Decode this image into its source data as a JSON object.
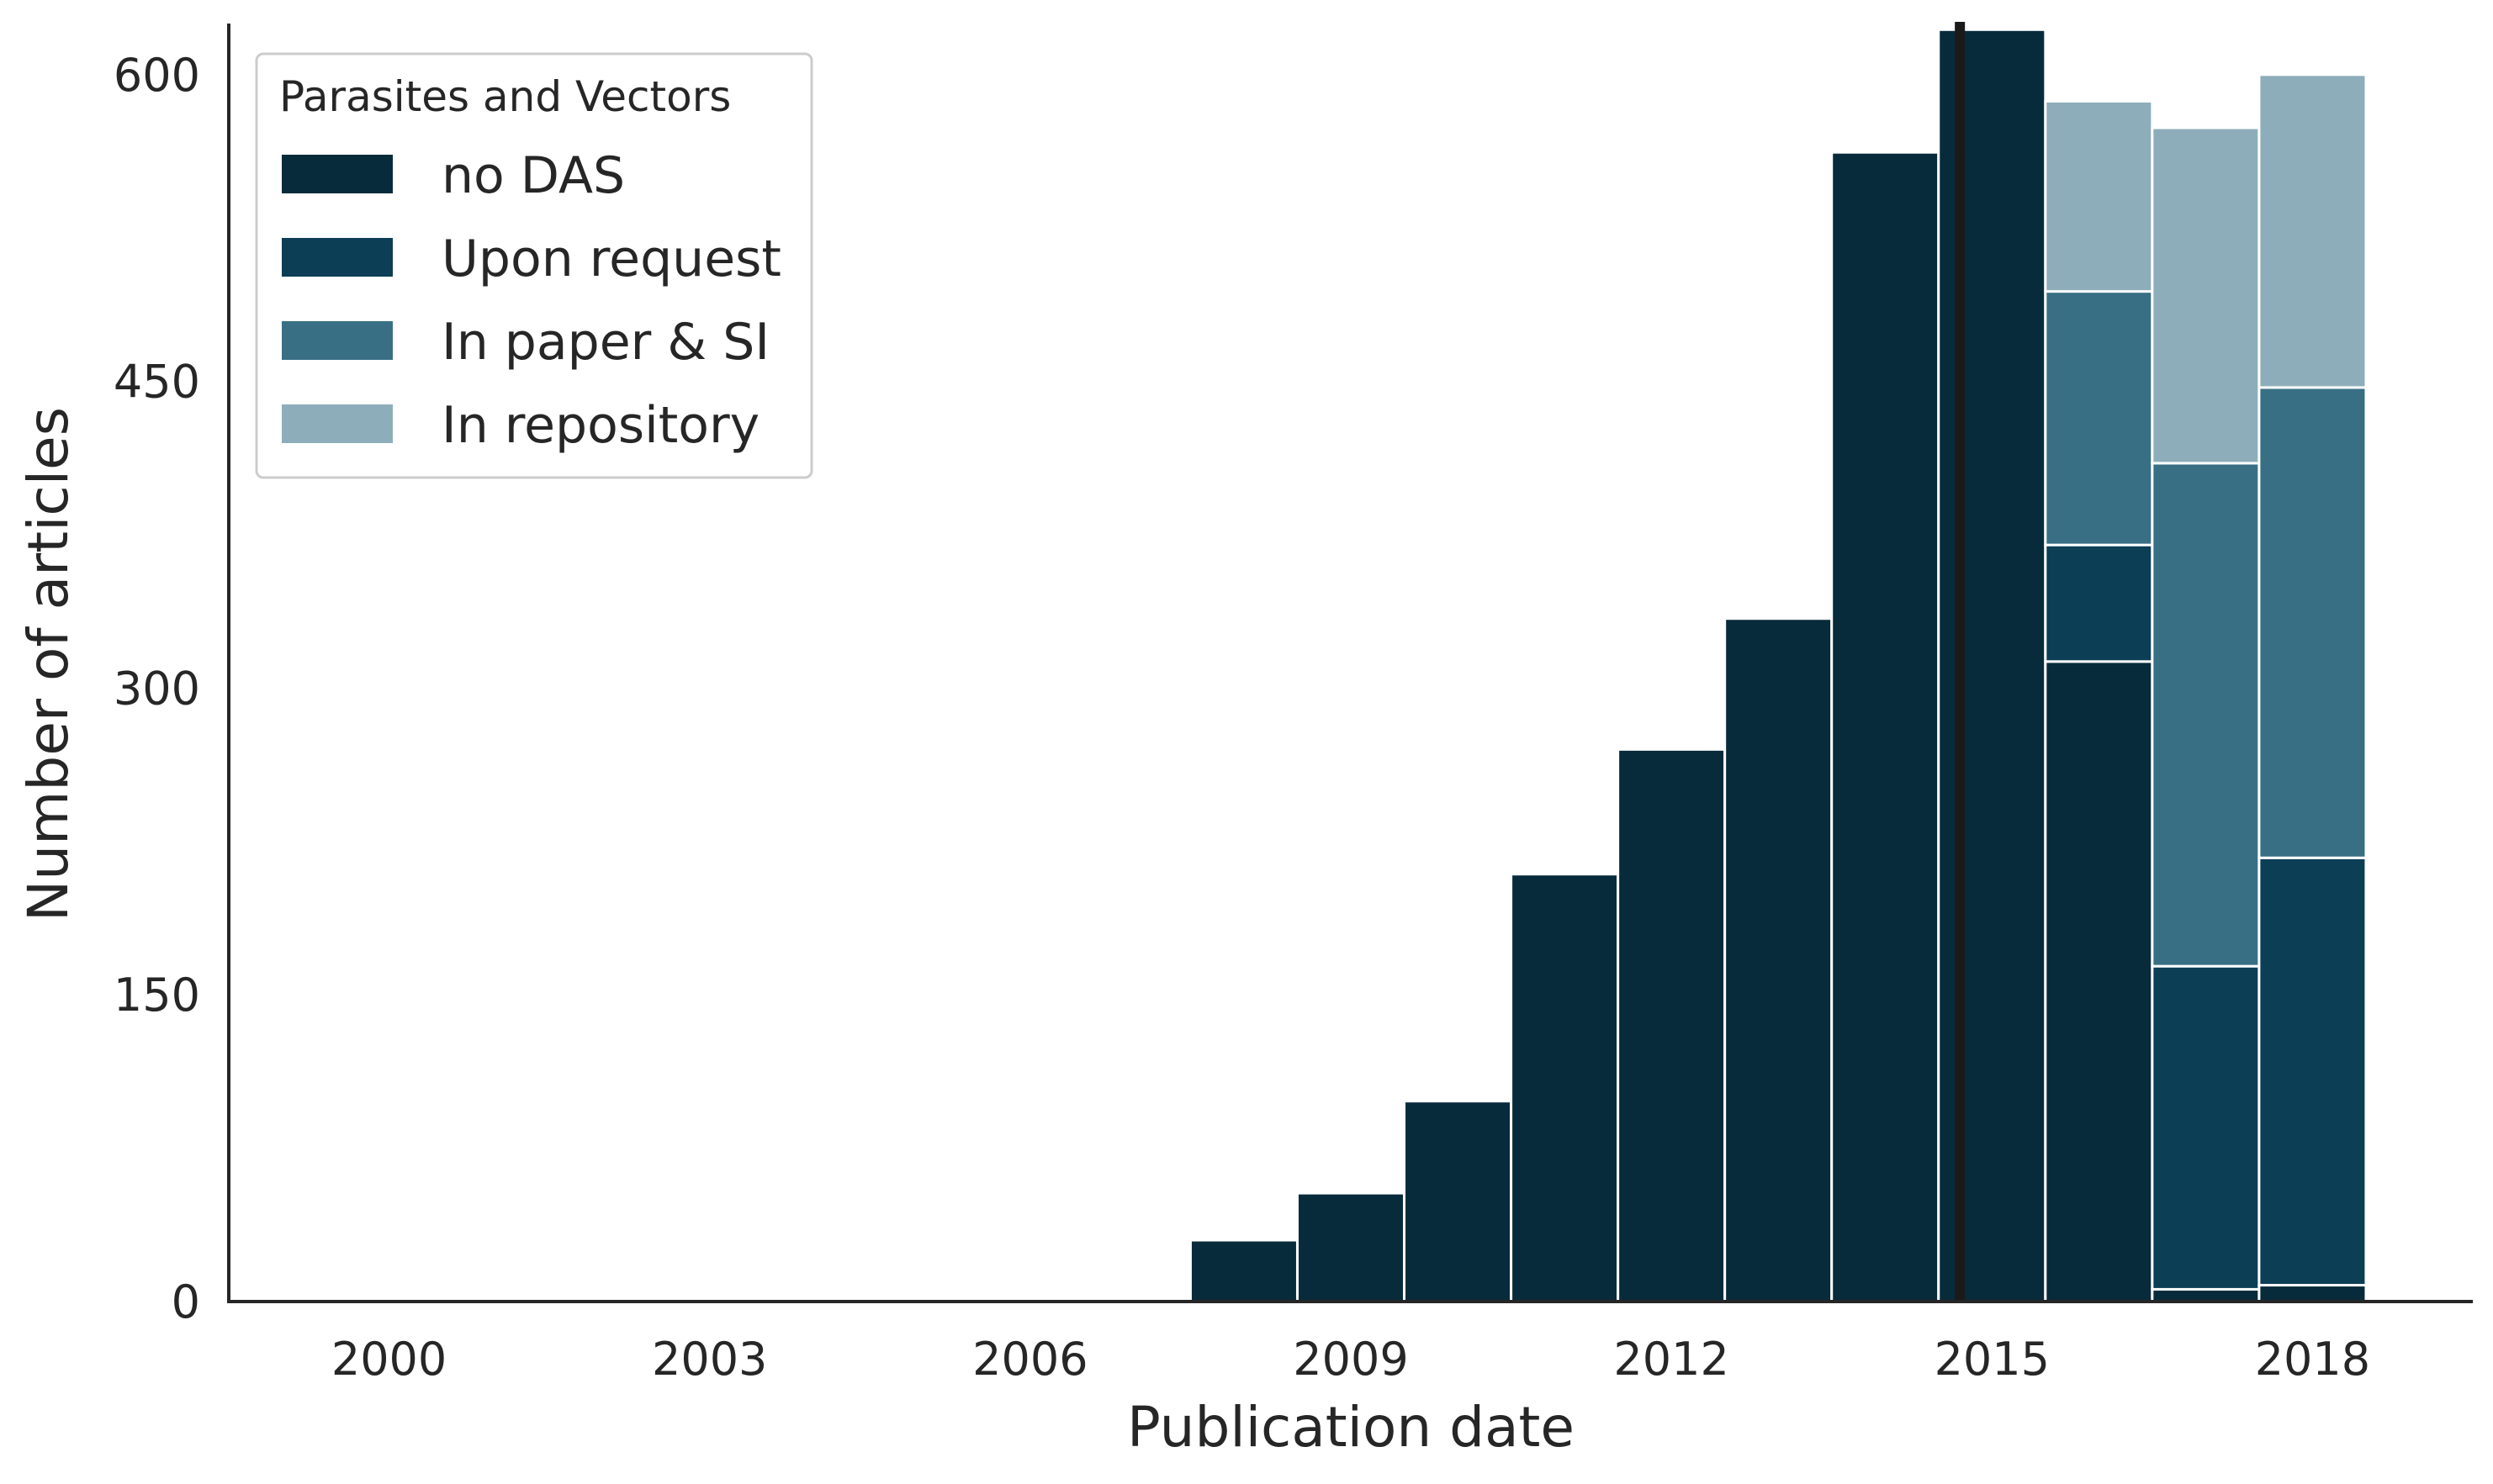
{
  "chart_data": {
    "type": "bar",
    "stacked": true,
    "title": "",
    "xlabel": "Publication date",
    "ylabel": "Number of articles",
    "x": [
      2008,
      2009,
      2010,
      2011,
      2012,
      2013,
      2014,
      2015,
      2016,
      2017,
      2018
    ],
    "xlim": [
      1998.5,
      2019.5
    ],
    "ylim": [
      0,
      625
    ],
    "xticks": [
      2000,
      2003,
      2006,
      2009,
      2012,
      2015,
      2018
    ],
    "yticks": [
      0,
      150,
      300,
      450,
      600
    ],
    "grid": false,
    "vline": {
      "x": 2014.7,
      "color": "#1a1a1a"
    },
    "legend": {
      "title": "Parasites and Vectors",
      "placement": "top-left"
    },
    "series": [
      {
        "name": "no DAS",
        "color": "#082b3b",
        "values": [
          30,
          53,
          98,
          209,
          270,
          334,
          562,
          622,
          313,
          6,
          8
        ]
      },
      {
        "name": "Upon request",
        "color": "#0c3e56",
        "values": [
          0,
          0,
          0,
          0,
          0,
          0,
          0,
          0,
          57,
          158,
          209
        ]
      },
      {
        "name": "In paper & SI",
        "color": "#386f85",
        "values": [
          0,
          0,
          0,
          0,
          0,
          0,
          0,
          0,
          124,
          246,
          230
        ]
      },
      {
        "name": "In repository",
        "color": "#8eadbb",
        "values": [
          0,
          0,
          0,
          0,
          0,
          0,
          0,
          0,
          93,
          164,
          153
        ]
      }
    ]
  }
}
